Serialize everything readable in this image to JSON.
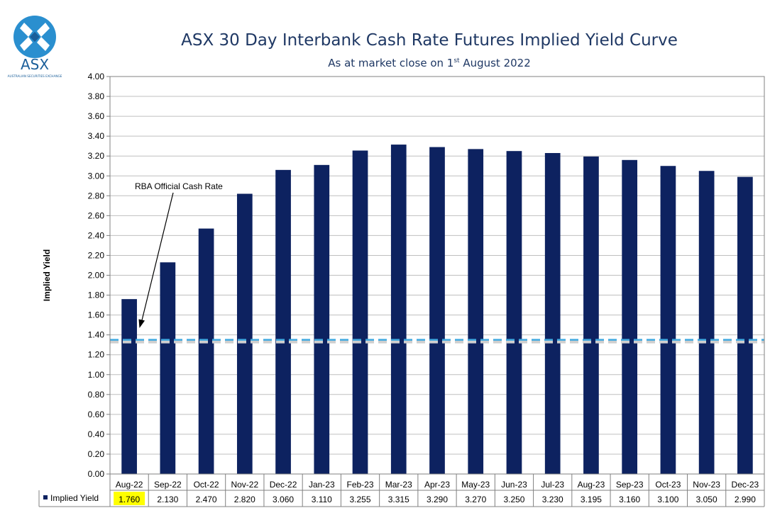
{
  "header": {
    "logo_text": "ASX",
    "logo_tagline": "AUSTRALIAN SECURITIES EXCHANGE",
    "title": "ASX 30 Day Interbank Cash Rate Futures Implied Yield Curve",
    "subtitle_pre": "As at market close on 1",
    "subtitle_sup": "st",
    "subtitle_post": " August 2022"
  },
  "colors": {
    "bar": "#0d2260",
    "reference_line": "#3fa9e0",
    "highlight": "#ffff00",
    "title": "#1f3864"
  },
  "chart_data": {
    "type": "bar",
    "title": "ASX 30 Day Interbank Cash Rate Futures Implied Yield Curve",
    "ylabel": "Implied Yield",
    "ylim": [
      0,
      4
    ],
    "ytick_step": 0.2,
    "grid": true,
    "categories": [
      "Aug-22",
      "Sep-22",
      "Oct-22",
      "Nov-22",
      "Dec-22",
      "Jan-23",
      "Feb-23",
      "Mar-23",
      "Apr-23",
      "May-23",
      "Jun-23",
      "Jul-23",
      "Aug-23",
      "Sep-23",
      "Oct-23",
      "Nov-23",
      "Dec-23"
    ],
    "series": [
      {
        "name": "Implied Yield",
        "values": [
          1.76,
          2.13,
          2.47,
          2.82,
          3.06,
          3.11,
          3.255,
          3.315,
          3.29,
          3.27,
          3.25,
          3.23,
          3.195,
          3.16,
          3.1,
          3.05,
          2.99
        ],
        "value_labels": [
          "1.760",
          "2.130",
          "2.470",
          "2.820",
          "3.060",
          "3.110",
          "3.255",
          "3.315",
          "3.290",
          "3.270",
          "3.250",
          "3.230",
          "3.195",
          "3.160",
          "3.100",
          "3.050",
          "2.990"
        ]
      }
    ],
    "highlighted_index": 0,
    "reference_line": {
      "label": "RBA Official Cash Rate",
      "value": 1.35
    },
    "data_table": true
  }
}
